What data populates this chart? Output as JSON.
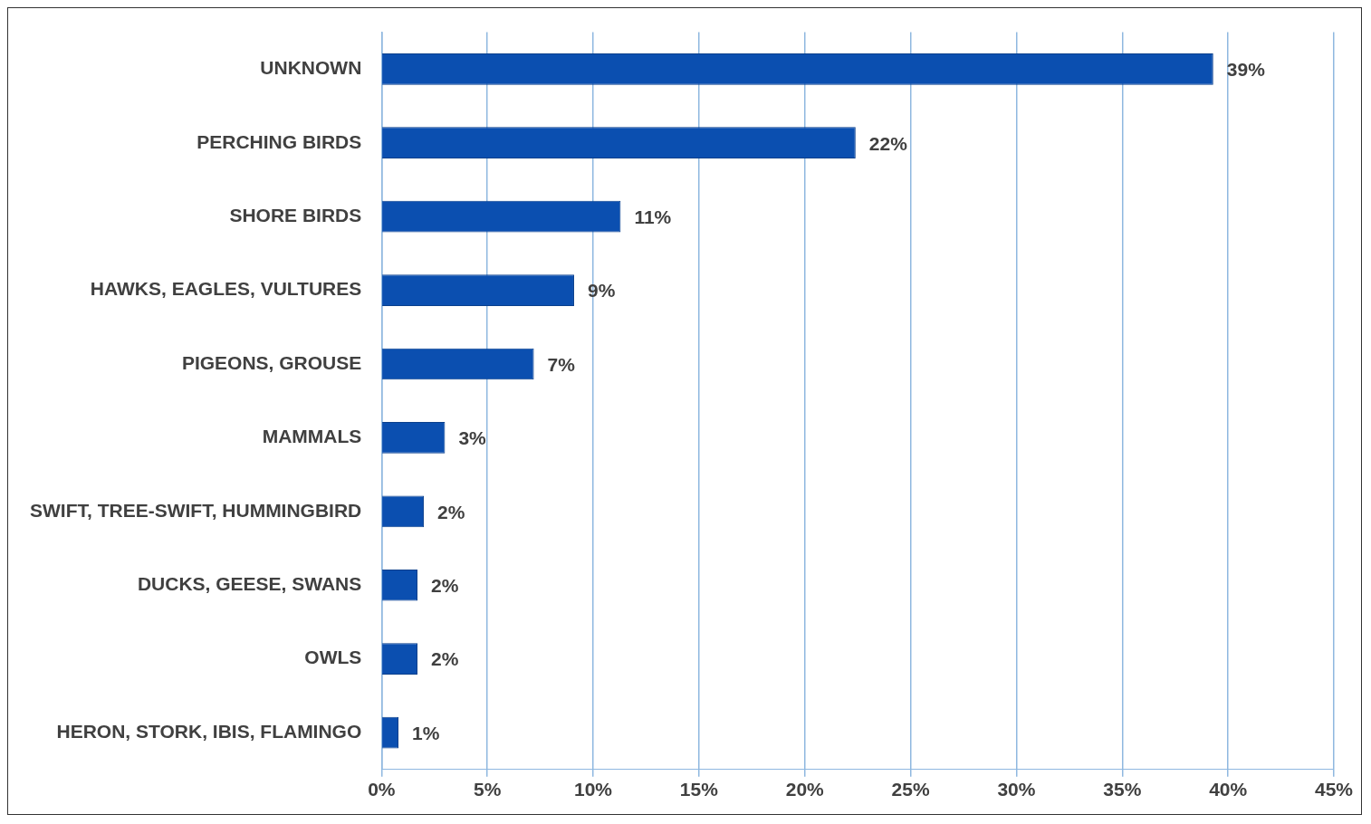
{
  "chart_data": {
    "type": "bar",
    "orientation": "horizontal",
    "categories": [
      "UNKNOWN",
      "PERCHING BIRDS",
      "SHORE BIRDS",
      "HAWKS, EAGLES, VULTURES",
      "PIGEONS, GROUSE",
      "MAMMALS",
      "SWIFT, TREE-SWIFT, HUMMINGBIRD",
      "DUCKS, GEESE, SWANS",
      "OWLS",
      "HERON, STORK, IBIS, FLAMINGO"
    ],
    "values": [
      39.3,
      22.4,
      11.3,
      9.1,
      7.2,
      3.0,
      2.0,
      1.7,
      1.7,
      0.8
    ],
    "value_labels": [
      "39%",
      "22%",
      "11%",
      "9%",
      "7%",
      "3%",
      "2%",
      "2%",
      "2%",
      "1%"
    ],
    "color": "#0b4fb0",
    "xlim": [
      0,
      45
    ],
    "xticks": [
      {
        "value": 0,
        "label": "0%"
      },
      {
        "value": 5,
        "label": "5%"
      },
      {
        "value": 10,
        "label": "10%"
      },
      {
        "value": 15,
        "label": "15%"
      },
      {
        "value": 20,
        "label": "20%"
      },
      {
        "value": 25,
        "label": "25%"
      },
      {
        "value": 30,
        "label": "30%"
      },
      {
        "value": 35,
        "label": "35%"
      },
      {
        "value": 40,
        "label": "40%"
      },
      {
        "value": 45,
        "label": "45%"
      }
    ],
    "grid": "x",
    "legend": false
  }
}
